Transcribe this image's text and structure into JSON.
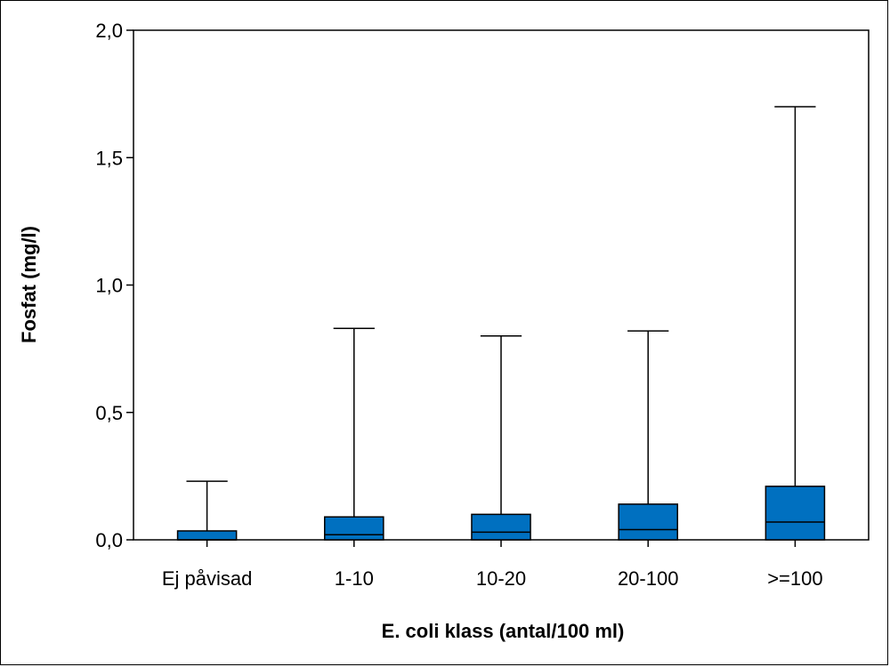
{
  "chart_data": {
    "type": "boxplot",
    "title": "",
    "xlabel": "E. coli klass (antal/100 ml)",
    "ylabel": "Fosfat (mg/l)",
    "ylim": [
      0,
      2.0
    ],
    "yticks": [
      {
        "value": 0.0,
        "label": "0,0"
      },
      {
        "value": 0.5,
        "label": "0,5"
      },
      {
        "value": 1.0,
        "label": "1,0"
      },
      {
        "value": 1.5,
        "label": "1,5"
      },
      {
        "value": 2.0,
        "label": "2,0"
      }
    ],
    "categories": [
      "Ej påvisad",
      "1-10",
      "10-20",
      "20-100",
      ">=100"
    ],
    "boxes": [
      {
        "min": 0.0,
        "q1": 0.0,
        "median": 0.0,
        "q3": 0.035,
        "max": 0.23
      },
      {
        "min": 0.0,
        "q1": 0.0,
        "median": 0.02,
        "q3": 0.09,
        "max": 0.83
      },
      {
        "min": 0.0,
        "q1": 0.0,
        "median": 0.03,
        "q3": 0.1,
        "max": 0.8
      },
      {
        "min": 0.0,
        "q1": 0.0,
        "median": 0.04,
        "q3": 0.14,
        "max": 0.82
      },
      {
        "min": 0.0,
        "q1": 0.0,
        "median": 0.07,
        "q3": 0.21,
        "max": 1.7
      }
    ],
    "box_color": "#0070C0",
    "grid": false,
    "legend": "none"
  }
}
